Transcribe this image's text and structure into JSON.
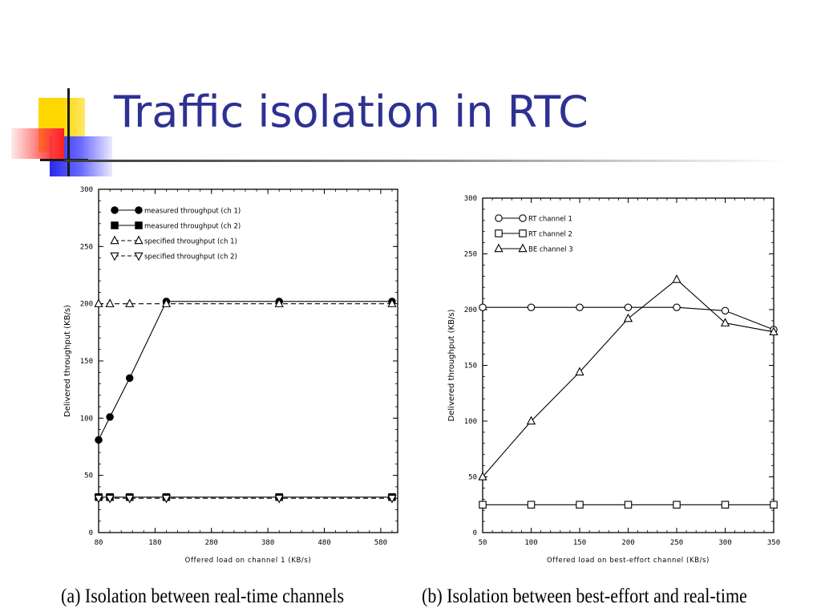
{
  "slide": {
    "title": "Traffic isolation in RTC",
    "colors": {
      "title": "#2e3192",
      "accent_yellow": "#ffd700",
      "accent_red": "#ff3030",
      "accent_blue": "#3a3aff"
    }
  },
  "chart_data": [
    {
      "id": "a",
      "type": "line",
      "caption": "(a) Isolation between real-time channels",
      "xlabel": "Offered load on channel 1 (KB/s)",
      "ylabel": "Delivered throughput (KB/s)",
      "xlim": [
        80,
        610
      ],
      "ylim": [
        0,
        300
      ],
      "xticks": [
        80,
        180,
        280,
        380,
        480,
        580
      ],
      "yticks": [
        0,
        50,
        100,
        150,
        200,
        250,
        300
      ],
      "legend_position": "top-left",
      "grid": false,
      "series": [
        {
          "name": "measured throughput (ch 1)",
          "marker": "filled-circle",
          "dash": "solid",
          "x": [
            80,
            100,
            135,
            200,
            400,
            600
          ],
          "y": [
            81,
            101,
            135,
            202,
            202,
            202
          ]
        },
        {
          "name": "measured throughput (ch 2)",
          "marker": "filled-square",
          "dash": "solid",
          "x": [
            80,
            100,
            135,
            200,
            400,
            600
          ],
          "y": [
            31,
            31,
            31,
            31,
            31,
            31
          ]
        },
        {
          "name": "specified throughput (ch 1)",
          "marker": "triangle-up",
          "dash": "dashed",
          "x": [
            80,
            100,
            135,
            200,
            400,
            600
          ],
          "y": [
            200,
            200,
            200,
            200,
            200,
            200
          ]
        },
        {
          "name": "specified throughput (ch 2)",
          "marker": "triangle-down",
          "dash": "dashed",
          "x": [
            80,
            100,
            135,
            200,
            400,
            600
          ],
          "y": [
            30,
            30,
            30,
            30,
            30,
            30
          ]
        }
      ]
    },
    {
      "id": "b",
      "type": "line",
      "caption": "(b) Isolation between best-effort and real-time",
      "xlabel": "Offered load on best-effort channel (KB/s)",
      "ylabel": "Delivered throughput (KB/s)",
      "xlim": [
        50,
        350
      ],
      "ylim": [
        0,
        300
      ],
      "xticks": [
        50,
        100,
        150,
        200,
        250,
        300,
        350
      ],
      "yticks": [
        0,
        50,
        100,
        150,
        200,
        250,
        300
      ],
      "legend_position": "top-left",
      "grid": false,
      "series": [
        {
          "name": "RT channel 1",
          "marker": "circle",
          "dash": "solid",
          "x": [
            50,
            100,
            150,
            200,
            250,
            300,
            350
          ],
          "y": [
            202,
            202,
            202,
            202,
            202,
            199,
            182
          ]
        },
        {
          "name": "RT channel 2",
          "marker": "square",
          "dash": "solid",
          "x": [
            50,
            100,
            150,
            200,
            250,
            300,
            350
          ],
          "y": [
            25,
            25,
            25,
            25,
            25,
            25,
            25
          ]
        },
        {
          "name": "BE channel 3",
          "marker": "triangle-up",
          "dash": "solid",
          "x": [
            50,
            100,
            150,
            200,
            250,
            300,
            350
          ],
          "y": [
            50,
            100,
            144,
            192,
            227,
            188,
            180
          ]
        }
      ]
    }
  ]
}
